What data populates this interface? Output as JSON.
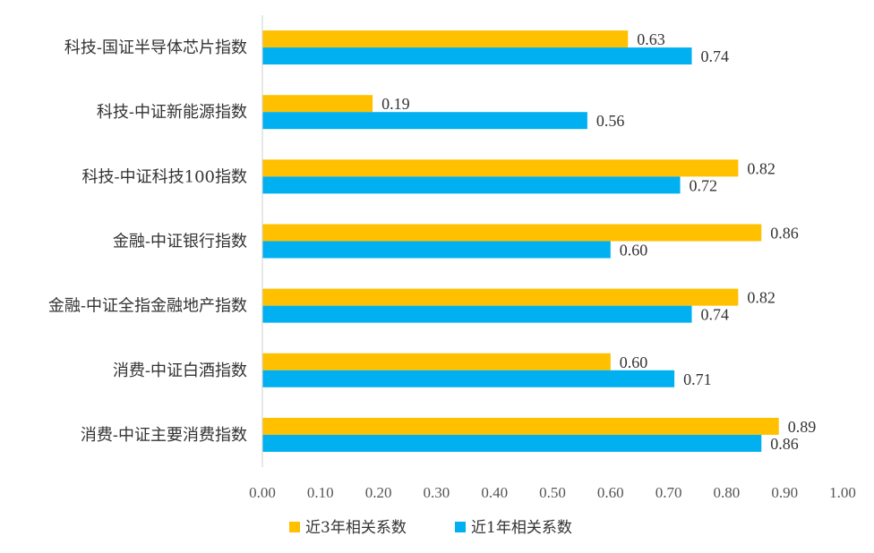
{
  "chart_data": {
    "type": "bar",
    "orientation": "horizontal",
    "categories": [
      "科技-国证半导体芯片指数",
      "科技-中证新能源指数",
      "科技-中证科技100指数",
      "金融-中证银行指数",
      "金融-中证全指金融地产指数",
      "消费-中证白酒指数",
      "消费-中证主要消费指数"
    ],
    "series": [
      {
        "name": "近3年相关系数",
        "color": "#FFC000",
        "values": [
          0.63,
          0.19,
          0.82,
          0.86,
          0.82,
          0.6,
          0.89
        ]
      },
      {
        "name": "近1年相关系数",
        "color": "#00B0F0",
        "values": [
          0.74,
          0.56,
          0.72,
          0.6,
          0.74,
          0.71,
          0.86
        ]
      }
    ],
    "xlim": [
      0,
      1.0
    ],
    "x_ticks": [
      0.0,
      0.1,
      0.2,
      0.3,
      0.4,
      0.5,
      0.6,
      0.7,
      0.8,
      0.9,
      1.0
    ],
    "grid": false,
    "legend_position": "bottom",
    "title": "",
    "xlabel": "",
    "ylabel": ""
  }
}
